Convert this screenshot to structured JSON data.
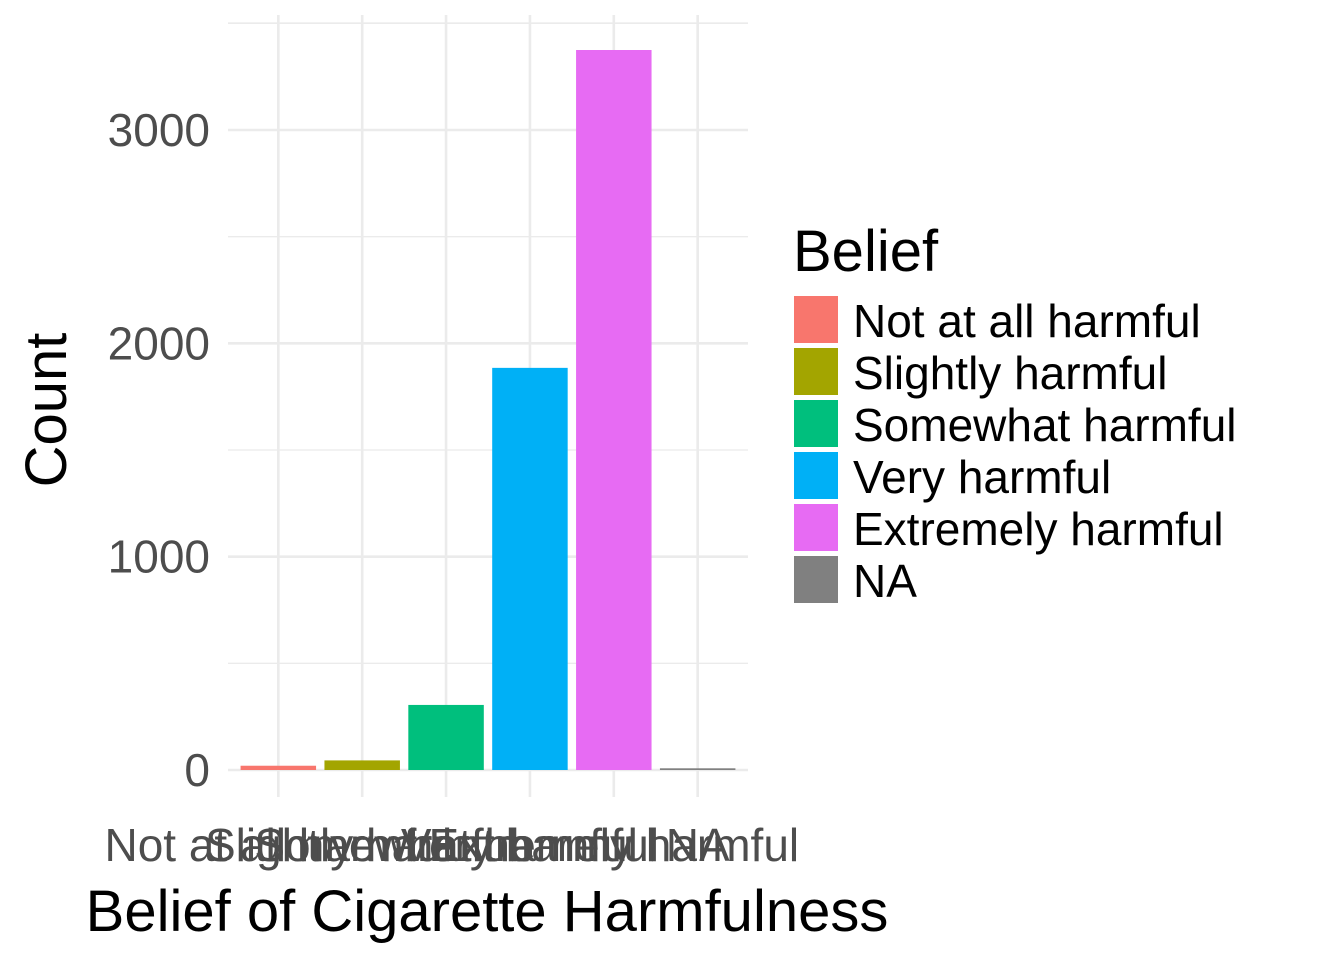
{
  "chart_data": {
    "type": "bar",
    "categories": [
      "Not at all harmful",
      "Slightly harmful",
      "Somewhat harmful",
      "Very harmful",
      "Extremely harmful",
      "NA"
    ],
    "values": [
      20,
      45,
      305,
      1885,
      3375,
      8
    ],
    "colors": [
      "#F8766D",
      "#A3A500",
      "#00BF7D",
      "#00B0F6",
      "#E76BF3",
      "#808080"
    ],
    "xlabel": "Belief of Cigarette Harmfulness",
    "ylabel": "Count",
    "ylim": [
      -120,
      3540
    ],
    "yticks": [
      0,
      1000,
      2000,
      3000
    ],
    "grid": true,
    "legend": {
      "title": "Belief",
      "placement": "right",
      "entries": [
        "Not at all harmful",
        "Slightly harmful",
        "Somewhat harmful",
        "Very harmful",
        "Extremely harmful",
        "NA"
      ]
    }
  }
}
